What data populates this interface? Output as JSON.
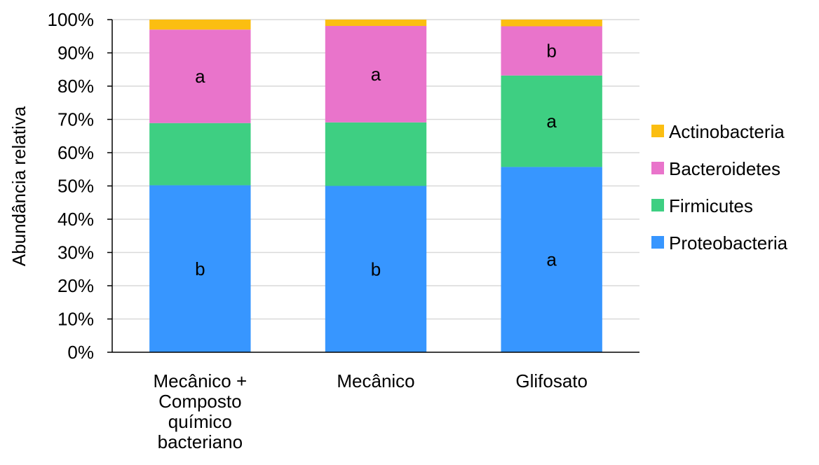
{
  "chart_data": {
    "type": "bar",
    "stacked": true,
    "percent": true,
    "title": "",
    "xlabel": "",
    "ylabel": "Abundância relativa",
    "ylim": [
      0,
      100
    ],
    "yticks": [
      "0%",
      "10%",
      "20%",
      "30%",
      "40%",
      "50%",
      "60%",
      "70%",
      "80%",
      "90%",
      "100%"
    ],
    "grid": true,
    "legend_position": "right",
    "categories": [
      [
        "Mecânico +",
        "Composto",
        "químico",
        "bacteriano"
      ],
      [
        "Mecânico"
      ],
      [
        "Glifosato"
      ]
    ],
    "series": [
      {
        "name": "Proteobacteria",
        "color": "#3796ff",
        "values": [
          50.2,
          50.0,
          55.7
        ],
        "labels": [
          "b",
          "b",
          "a"
        ]
      },
      {
        "name": "Firmicutes",
        "color": "#3ecf82",
        "values": [
          18.7,
          19.1,
          27.5
        ],
        "labels": [
          "",
          "",
          "a"
        ]
      },
      {
        "name": "Bacteroidetes",
        "color": "#e974cb",
        "values": [
          28.1,
          29.0,
          14.8
        ],
        "labels": [
          "a",
          "a",
          "b"
        ]
      },
      {
        "name": "Actinobacteria",
        "color": "#fbbe11",
        "values": [
          3.0,
          1.9,
          2.0
        ],
        "labels": [
          "",
          "",
          ""
        ]
      }
    ],
    "legend_order": [
      "Actinobacteria",
      "Bacteroidetes",
      "Firmicutes",
      "Proteobacteria"
    ]
  }
}
